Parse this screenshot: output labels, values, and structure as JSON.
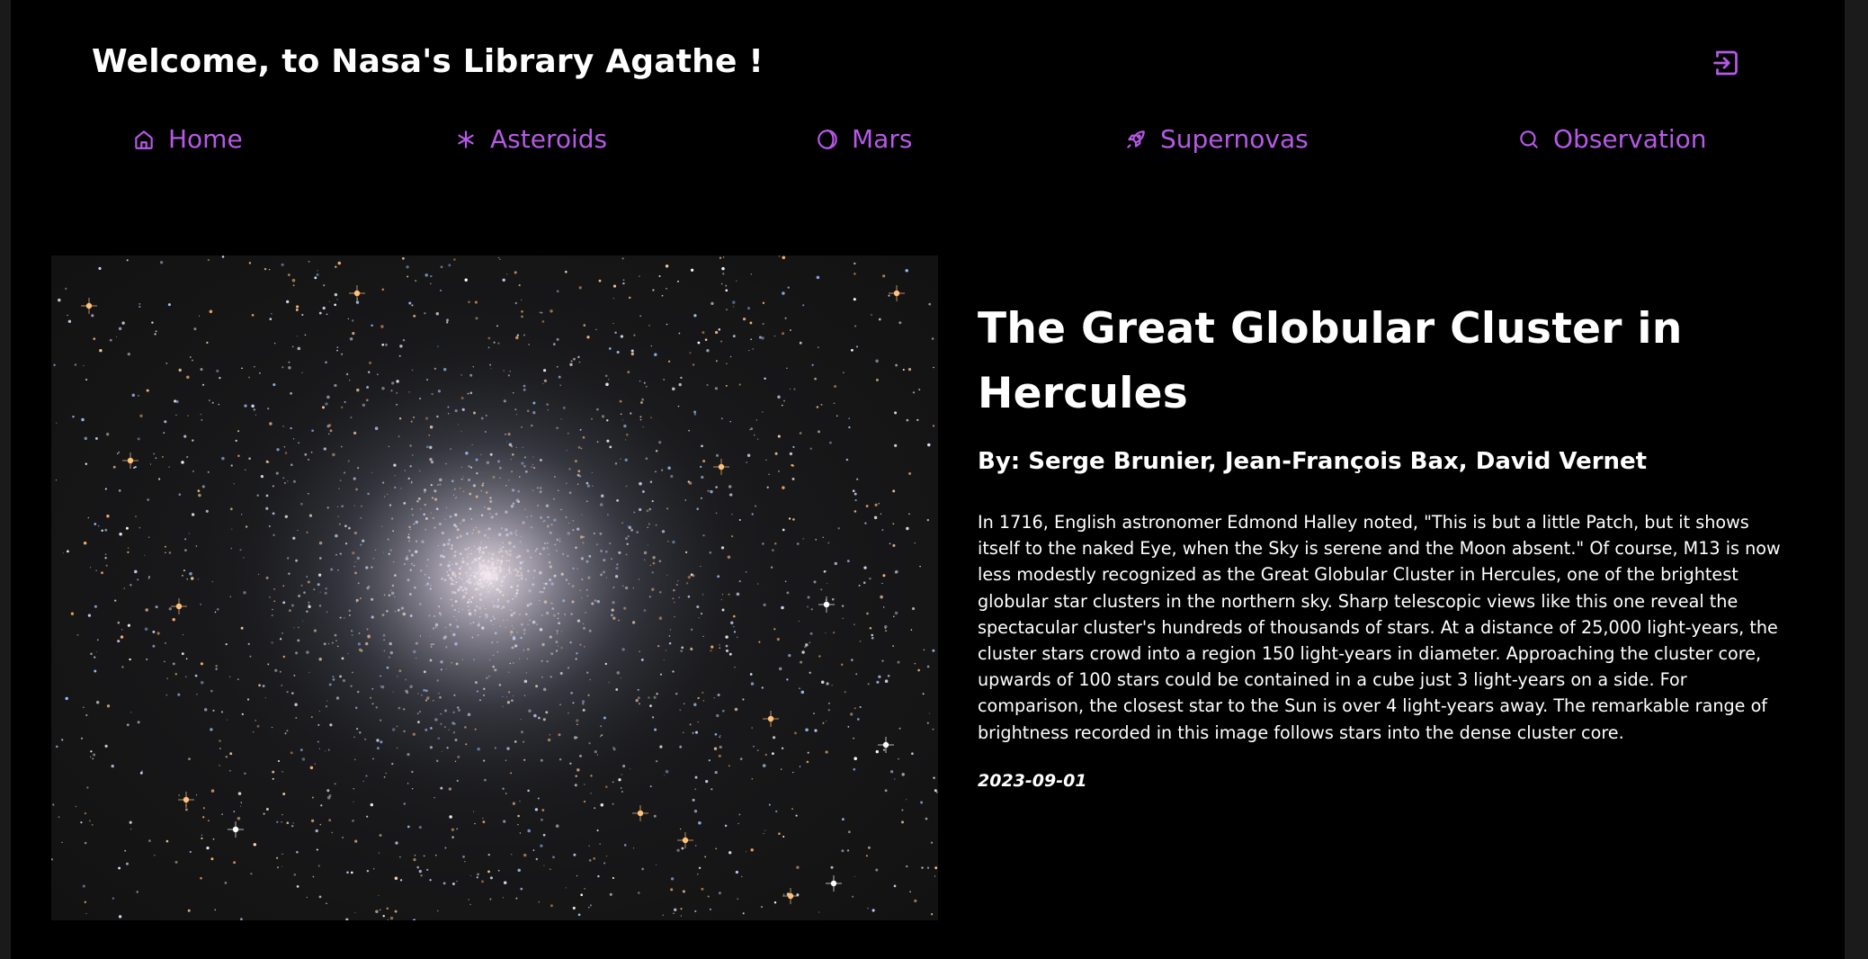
{
  "header": {
    "welcome_text": "Welcome, to Nasa's Library Agathe !",
    "logout_icon": "logout-icon"
  },
  "nav": {
    "items": [
      {
        "label": "Home",
        "icon": "home-icon"
      },
      {
        "label": "Asteroids",
        "icon": "asterisk-icon"
      },
      {
        "label": "Mars",
        "icon": "moon-icon"
      },
      {
        "label": "Supernovas",
        "icon": "rocket-icon"
      },
      {
        "label": "Observation",
        "icon": "search-icon"
      }
    ]
  },
  "article": {
    "title": "The Great Globular Cluster in Hercules",
    "byline": "By: Serge Brunier, Jean-François Bax, David Vernet",
    "explanation": "In 1716, English astronomer Edmond Halley noted, \"This is but a little Patch, but it shows itself to the naked Eye, when the Sky is serene and the Moon absent.\" Of course, M13 is now less modestly recognized as the Great Globular Cluster in Hercules, one of the brightest globular star clusters in the northern sky. Sharp telescopic views like this one reveal the spectacular cluster's hundreds of thousands of stars. At a distance of 25,000 light-years, the cluster stars crowd into a region 150 light-years in diameter. Approaching the cluster core, upwards of 100 stars could be contained in a cube just 3 light-years on a side. For comparison, the closest star to the Sun is over 4 light-years away. The remarkable range of brightness recorded in this image follows stars into the dense cluster core.",
    "date": "2023-09-01"
  },
  "colors": {
    "accent": "#b659e6",
    "background": "#000000",
    "text": "#ffffff"
  }
}
